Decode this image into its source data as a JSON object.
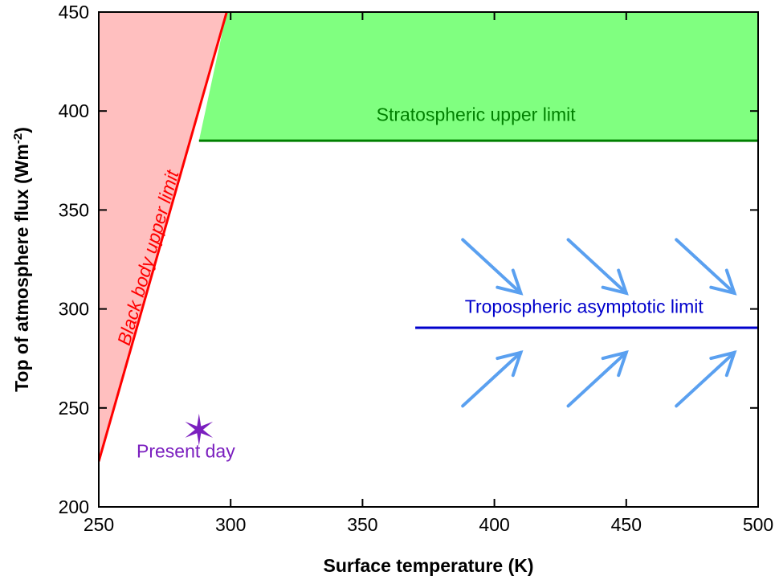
{
  "chart_data": {
    "type": "line",
    "title": "",
    "xlabel": "Surface temperature (K)",
    "ylabel": {
      "main": "Top of atmosphere flux (Wm",
      "sup": "-2",
      "close": ")"
    },
    "xlim": [
      250,
      500
    ],
    "ylim": [
      200,
      450
    ],
    "xticks": [
      250,
      300,
      350,
      400,
      450,
      500
    ],
    "yticks": [
      200,
      250,
      300,
      350,
      400,
      450
    ],
    "grid": false,
    "regions": [
      {
        "name": "black-body-region",
        "color": "#ffbfbf",
        "polygon": [
          [
            250,
            223
          ],
          [
            298.5,
            450
          ],
          [
            250,
            450
          ]
        ]
      },
      {
        "name": "stratospheric-region",
        "color": "#80ff80",
        "polygon": [
          [
            288,
            385
          ],
          [
            298.5,
            450
          ],
          [
            500,
            450
          ],
          [
            500,
            385
          ]
        ]
      }
    ],
    "series": [
      {
        "key": "black_body",
        "color": "#ff0000",
        "x": [
          250,
          298.5
        ],
        "y": [
          223,
          450
        ]
      },
      {
        "key": "stratospheric",
        "color": "#008000",
        "x": [
          288,
          500
        ],
        "y": [
          385,
          385
        ]
      },
      {
        "key": "tropospheric",
        "color": "#0000cc",
        "x": [
          370,
          500
        ],
        "y": [
          290.5,
          290.5
        ]
      }
    ],
    "arrows": {
      "color": "#5aa0f0",
      "items": [
        {
          "from": [
            388,
            335
          ],
          "to": [
            410,
            308
          ]
        },
        {
          "from": [
            428,
            335
          ],
          "to": [
            450,
            308
          ]
        },
        {
          "from": [
            469,
            335
          ],
          "to": [
            491,
            308
          ]
        },
        {
          "from": [
            388,
            251
          ],
          "to": [
            410,
            278
          ]
        },
        {
          "from": [
            428,
            251
          ],
          "to": [
            450,
            278
          ]
        },
        {
          "from": [
            469,
            251
          ],
          "to": [
            491,
            278
          ]
        }
      ]
    },
    "point": {
      "label": "Present day",
      "x": 288,
      "y": 239,
      "marker": "star",
      "color": "#7b1fbf"
    },
    "annotations": [
      {
        "key": "black_body",
        "text": "Black body upper limit",
        "color": "#ff0000",
        "x": 271,
        "y": 325,
        "rotate": true
      },
      {
        "key": "stratospheric",
        "text": "Stratospheric upper limit",
        "color": "#008000",
        "x": 393,
        "y": 395
      },
      {
        "key": "tropospheric",
        "text": "Tropospheric asymptotic limit",
        "color": "#0000cc",
        "x": 434,
        "y": 298
      },
      {
        "key": "present",
        "text": "Present day",
        "color": "#7b1fbf",
        "x": 283,
        "y": 225
      }
    ]
  }
}
